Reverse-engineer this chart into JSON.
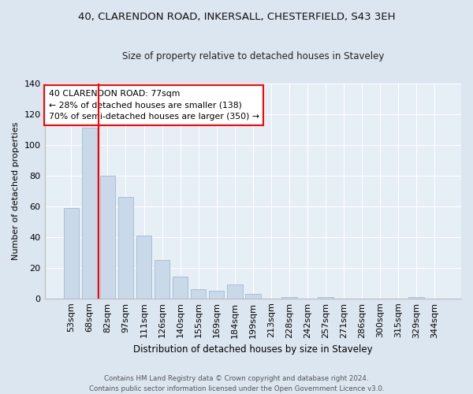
{
  "title": "40, CLARENDON ROAD, INKERSALL, CHESTERFIELD, S43 3EH",
  "subtitle": "Size of property relative to detached houses in Staveley",
  "xlabel": "Distribution of detached houses by size in Staveley",
  "ylabel": "Number of detached properties",
  "bar_color": "#c9d9ea",
  "bar_edge_color": "#a8c0d6",
  "background_color": "#dce6f0",
  "plot_bg_color": "#e6eef6",
  "grid_color": "#ffffff",
  "categories": [
    "53sqm",
    "68sqm",
    "82sqm",
    "97sqm",
    "111sqm",
    "126sqm",
    "140sqm",
    "155sqm",
    "169sqm",
    "184sqm",
    "199sqm",
    "213sqm",
    "228sqm",
    "242sqm",
    "257sqm",
    "271sqm",
    "286sqm",
    "300sqm",
    "315sqm",
    "329sqm",
    "344sqm"
  ],
  "values": [
    59,
    111,
    80,
    66,
    41,
    25,
    14,
    6,
    5,
    9,
    3,
    0,
    1,
    0,
    1,
    0,
    0,
    0,
    0,
    1,
    0
  ],
  "marker_label": "40 CLARENDON ROAD: 77sqm",
  "annotation_line1": "← 28% of detached houses are smaller (138)",
  "annotation_line2": "70% of semi-detached houses are larger (350) →",
  "vline_position": 1.5,
  "footer_line1": "Contains HM Land Registry data © Crown copyright and database right 2024.",
  "footer_line2": "Contains public sector information licensed under the Open Government Licence v3.0.",
  "ylim": [
    0,
    140
  ],
  "yticks": [
    0,
    20,
    40,
    60,
    80,
    100,
    120,
    140
  ]
}
